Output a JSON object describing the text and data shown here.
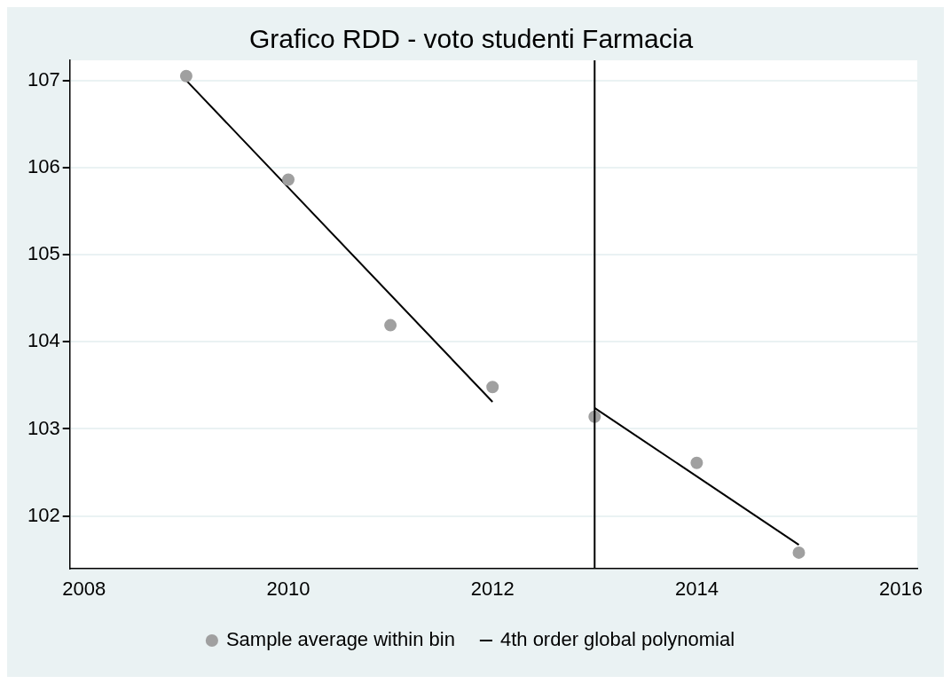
{
  "chart_data": {
    "type": "scatter",
    "title": "Grafico RDD - voto studenti Farmacia",
    "x": [
      2009,
      2010,
      2011,
      2012,
      2013,
      2014,
      2015
    ],
    "series": [
      {
        "name": "Sample average within bin",
        "marker": "circle",
        "color": "#a0a0a0",
        "values": [
          107.05,
          105.86,
          104.19,
          103.48,
          103.14,
          102.61,
          101.58
        ]
      },
      {
        "name": "4th order global polynomial",
        "type": "line",
        "color": "#000000",
        "x": [
          2009,
          2012,
          2012.5,
          2013,
          2015
        ],
        "values": [
          107.0,
          103.31,
          null,
          103.24,
          101.67
        ]
      }
    ],
    "xlim": [
      2007.86,
      2016.16
    ],
    "xticks": [
      2008,
      2010,
      2012,
      2014,
      2016
    ],
    "ylim": [
      101.4,
      107.23
    ],
    "yticks": [
      102,
      103,
      104,
      105,
      106,
      107
    ],
    "ref_lines": [
      {
        "axis": "x",
        "value": 2013,
        "color": "#000000"
      }
    ],
    "grid": "y",
    "legend": "bottom"
  }
}
